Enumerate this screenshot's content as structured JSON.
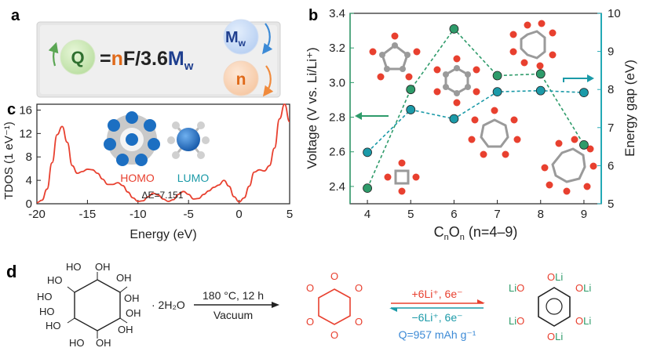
{
  "colors": {
    "green": "#2e9b6a",
    "teal": "#1b9aa8",
    "axis_teal": "#23a9b5",
    "red": "#e8402f",
    "blue": "#3c8ad6",
    "orange": "#f08a3c",
    "navy": "#1f3f8f",
    "gray_box": "#e2e2e2"
  },
  "panel_a": {
    "label": "a",
    "q": "Q",
    "eq_equals": "=",
    "eq_n": "n",
    "eq_mid": "F/3.6",
    "eq_M": "M",
    "eq_sub": "w",
    "mw_M": "M",
    "mw_sub": "w",
    "n": "n"
  },
  "panel_b": {
    "label": "b",
    "ylabel_left": "Voltage (V vs. Li/Li⁺)",
    "ylabel_right": "Energy gap (eV)",
    "xlabel_main": "C",
    "xlabel_sub1": "n",
    "xlabel_mid": "O",
    "xlabel_sub2": "n",
    "xlabel_tail": " (n=4–9)"
  },
  "panel_c": {
    "label": "c",
    "ylabel": "TDOS (1 eV⁻¹)",
    "xlabel": "Energy (eV)",
    "homo": "HOMO",
    "lumo": "LUMO",
    "delta": "ΔE=7.151"
  },
  "panel_d": {
    "label": "d",
    "oh": "OH",
    "ho": "HO",
    "hydrate": "· 2H₂O",
    "condition_top": "180 °C, 12 h",
    "condition_bottom": "Vacuum",
    "o": "O",
    "forward": "+6Li⁺, 6e⁻",
    "reverse": "−6Li⁺, 6e⁻",
    "capacity": "Q=957 mAh g⁻¹",
    "oli": "OLi",
    "lio": "LiO"
  },
  "chart_data": [
    {
      "type": "line",
      "panel": "b",
      "x": [
        4,
        5,
        6,
        7,
        8,
        9
      ],
      "xlim": [
        3.6,
        9.4
      ],
      "xticks": [
        4,
        5,
        6,
        7,
        8,
        9
      ],
      "xlabel": "CnOn (n=4–9)",
      "ylabel": "Voltage (V vs. Li/Li⁺)",
      "ylim": [
        2.3,
        3.4
      ],
      "yticks": [
        2.4,
        2.6,
        2.8,
        3.0,
        3.2,
        3.4
      ],
      "y2label": "Energy gap (eV)",
      "y2lim": [
        5,
        10
      ],
      "y2ticks": [
        5,
        6,
        7,
        8,
        9,
        10
      ],
      "series": [
        {
          "axis": "left",
          "values": [
            2.39,
            2.96,
            3.31,
            3.04,
            3.05,
            2.64
          ]
        },
        {
          "axis": "right",
          "values": [
            6.35,
            7.47,
            7.23,
            7.94,
            7.97,
            7.92
          ]
        }
      ]
    },
    {
      "type": "line",
      "panel": "c",
      "xlabel": "Energy (eV)",
      "ylabel": "TDOS (1 eV⁻¹)",
      "xlim": [
        -20,
        5
      ],
      "ylim": [
        0,
        17
      ],
      "xticks": [
        -20,
        -15,
        -10,
        -5,
        0,
        5
      ],
      "yticks": [
        0,
        4,
        8,
        12,
        16
      ],
      "x": [
        -20,
        -19.5,
        -19,
        -18.5,
        -18,
        -17.5,
        -17,
        -16.5,
        -16,
        -15.5,
        -15,
        -14.5,
        -14,
        -13.5,
        -13,
        -12.5,
        -12,
        -11.5,
        -11,
        -10.5,
        -10,
        -9.5,
        -9,
        -8.5,
        -8,
        -7.5,
        -7,
        -6.5,
        -6,
        -5.5,
        -5,
        -4.5,
        -4,
        -3.5,
        -3,
        -2.5,
        -2,
        -1.5,
        -1,
        -0.5,
        0,
        0.5,
        1,
        1.5,
        2,
        2.5,
        3,
        3.5,
        4,
        4.5,
        5
      ],
      "values": [
        0.2,
        0.6,
        2.5,
        7.0,
        11.8,
        13.2,
        10.5,
        6.5,
        5.2,
        5.5,
        5.9,
        5.8,
        5.2,
        4.2,
        3.3,
        3.3,
        3.6,
        3.1,
        2.0,
        1.0,
        0.4,
        0.5,
        1.2,
        1.8,
        1.5,
        0.8,
        0.4,
        0.7,
        1.6,
        2.1,
        1.6,
        0.8,
        0.9,
        1.6,
        2.2,
        2.8,
        3.2,
        4.0,
        3.0,
        1.2,
        0.3,
        1.0,
        3.0,
        5.4,
        5.8,
        5.6,
        6.5,
        9.5,
        14.5,
        17.0,
        14.0
      ]
    }
  ]
}
